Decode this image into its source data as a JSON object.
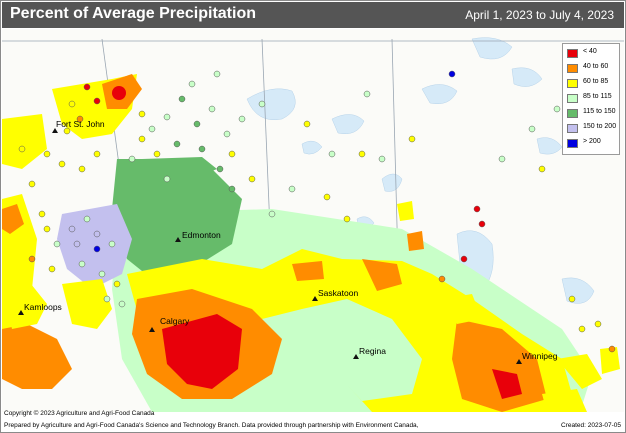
{
  "header": {
    "title": "Percent of Average Precipitation",
    "date_range": "April 1, 2023 to July 4, 2023"
  },
  "legend": {
    "items": [
      {
        "label": "< 40",
        "color": "#e8000a"
      },
      {
        "label": "40 to 60",
        "color": "#ff8c00"
      },
      {
        "label": "60 to 85",
        "color": "#ffff00"
      },
      {
        "label": "85 to 115",
        "color": "#c8ffc8"
      },
      {
        "label": "115 to 150",
        "color": "#66bb6a"
      },
      {
        "label": "150 to 200",
        "color": "#c3c0ee"
      },
      {
        "label": "> 200",
        "color": "#0000e0"
      }
    ]
  },
  "cities": [
    {
      "name": "Fort St. John"
    },
    {
      "name": "Edmonton"
    },
    {
      "name": "Kamloops"
    },
    {
      "name": "Saskatoon"
    },
    {
      "name": "Calgary"
    },
    {
      "name": "Regina"
    },
    {
      "name": "Winnipeg"
    }
  ],
  "footer": {
    "copyright": "Copyright © 2023 Agriculture and Agri-Food Canada",
    "prepared_by": "Prepared by Agriculture and Agri-Food Canada's Science and Technology Branch. Data provided through partnership with Environment Canada,",
    "created": "Created: 2023-07-05"
  }
}
